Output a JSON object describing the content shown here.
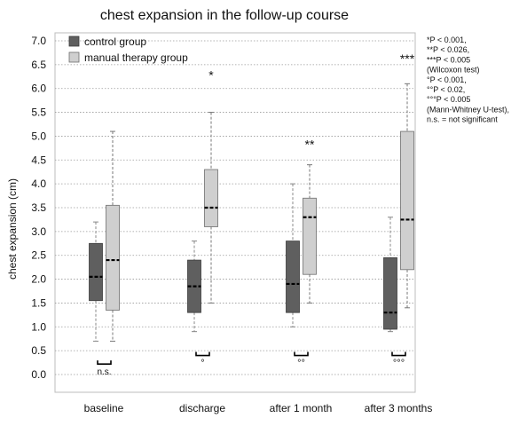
{
  "chart_data": {
    "type": "box",
    "title": "chest expansion in the follow-up course",
    "ylabel": "chest expansion (cm)",
    "xlabel": "",
    "ylim": [
      0.0,
      7.0
    ],
    "yticks": [
      "0.0",
      "0.5",
      "1.0",
      "1.5",
      "2.0",
      "2.5",
      "3.0",
      "3.5",
      "4.0",
      "4.5",
      "5.0",
      "5.5",
      "6.0",
      "6.5",
      "7.0"
    ],
    "grid": "horizontal dotted",
    "legend_position": "top-left",
    "categories": [
      "baseline",
      "discharge",
      "after 1 month",
      "after 3 months"
    ],
    "series": [
      {
        "name": "control group",
        "color": "#5f5f5f",
        "boxes": [
          {
            "min": 0.7,
            "q1": 1.55,
            "median": 2.05,
            "q3": 2.75,
            "max": 3.2
          },
          {
            "min": 0.9,
            "q1": 1.3,
            "median": 1.85,
            "q3": 2.4,
            "max": 2.8
          },
          {
            "min": 1.0,
            "q1": 1.3,
            "median": 1.9,
            "q3": 2.8,
            "max": 4.0
          },
          {
            "min": 0.9,
            "q1": 0.95,
            "median": 1.3,
            "q3": 2.45,
            "max": 3.3
          }
        ]
      },
      {
        "name": "manual therapy group",
        "color": "#cfcfcf",
        "boxes": [
          {
            "min": 0.7,
            "q1": 1.35,
            "median": 2.4,
            "q3": 3.55,
            "max": 5.1
          },
          {
            "min": 1.5,
            "q1": 3.1,
            "median": 3.5,
            "q3": 4.3,
            "max": 5.5
          },
          {
            "min": 1.5,
            "q1": 2.1,
            "median": 3.3,
            "q3": 3.7,
            "max": 4.4
          },
          {
            "min": 1.4,
            "q1": 2.2,
            "median": 3.25,
            "q3": 5.1,
            "max": 6.1
          }
        ]
      }
    ],
    "within_group_marks": [
      "",
      "*",
      "**",
      "***"
    ],
    "between_group_marks": [
      "n.s.",
      "°",
      "°°",
      "°°°"
    ],
    "footnote_lines": [
      "*P < 0.001,",
      "**P < 0.026,",
      "***P < 0.005",
      "(Wilcoxon  test)",
      "°P < 0.001,",
      "°°P < 0.02,",
      "°°°P < 0.005",
      "(Mann-Whitney   U-test),",
      "n.s. = not significant"
    ]
  }
}
